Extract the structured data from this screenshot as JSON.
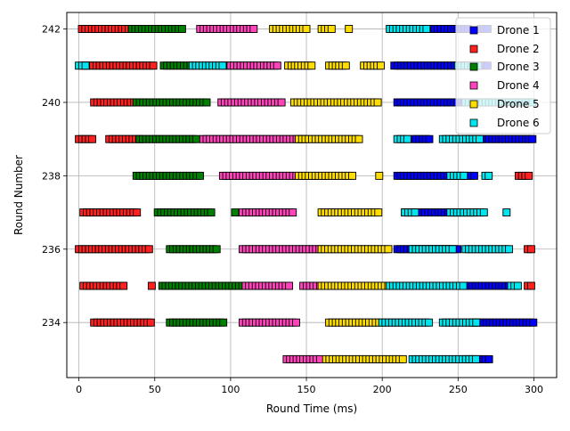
{
  "chart_data": {
    "type": "scatter",
    "title": "",
    "xlabel": "Round Time (ms)",
    "ylabel": "Round Number",
    "xlim": [
      -8,
      315
    ],
    "ylim": [
      232.5,
      242.45
    ],
    "xticks": [
      0,
      50,
      100,
      150,
      200,
      250,
      300
    ],
    "yticks": [
      234,
      236,
      238,
      240,
      242
    ],
    "grid": true,
    "legend_position": "top-right",
    "marker": "square",
    "series": [
      {
        "name": "Drone 1",
        "color": "#0000ff",
        "segments": [
          {
            "round": 242,
            "ranges": [
              [
                208,
                258
              ],
              [
                265,
                270
              ]
            ]
          },
          {
            "round": 241,
            "ranges": [
              [
                208,
                258
              ],
              [
                265,
                270
              ]
            ]
          },
          {
            "round": 240,
            "ranges": [
              [
                210,
                258
              ]
            ]
          },
          {
            "round": 239,
            "ranges": [
              [
                220,
                232
              ],
              [
                255,
                300
              ]
            ]
          },
          {
            "round": 238,
            "ranges": [
              [
                210,
                262
              ]
            ]
          },
          {
            "round": 237,
            "ranges": [
              [
                215,
                262
              ]
            ]
          },
          {
            "round": 236,
            "ranges": [
              [
                210,
                250
              ]
            ]
          },
          {
            "round": 235,
            "ranges": [
              [
                255,
                290
              ]
            ]
          },
          {
            "round": 234,
            "ranges": [
              [
                260,
                300
              ]
            ]
          },
          {
            "round": 233,
            "ranges": [
              [
                255,
                272
              ]
            ]
          }
        ]
      },
      {
        "name": "Drone 2",
        "color": "#ff2020",
        "segments": [
          {
            "round": 242,
            "ranges": [
              [
                2,
                38
              ]
            ]
          },
          {
            "round": 241,
            "ranges": [
              [
                5,
                50
              ]
            ]
          },
          {
            "round": 240,
            "ranges": [
              [
                10,
                38
              ]
            ]
          },
          {
            "round": 239,
            "ranges": [
              [
                0,
                10
              ],
              [
                20,
                40
              ]
            ]
          },
          {
            "round": 238,
            "ranges": [
              [
                290,
                298
              ]
            ]
          },
          {
            "round": 237,
            "ranges": [
              [
                3,
                40
              ]
            ]
          },
          {
            "round": 236,
            "ranges": [
              [
                0,
                48
              ],
              [
                296,
                300
              ]
            ]
          },
          {
            "round": 235,
            "ranges": [
              [
                3,
                30
              ],
              [
                48,
                50
              ],
              [
                296,
                300
              ]
            ]
          },
          {
            "round": 234,
            "ranges": [
              [
                10,
                48
              ]
            ]
          }
        ]
      },
      {
        "name": "Drone 3",
        "color": "#008000",
        "segments": [
          {
            "round": 242,
            "ranges": [
              [
                35,
                68
              ]
            ]
          },
          {
            "round": 241,
            "ranges": [
              [
                56,
                75
              ],
              [
                96,
                100
              ]
            ]
          },
          {
            "round": 240,
            "ranges": [
              [
                38,
                85
              ]
            ]
          },
          {
            "round": 239,
            "ranges": [
              [
                40,
                78
              ]
            ]
          },
          {
            "round": 238,
            "ranges": [
              [
                38,
                80
              ]
            ]
          },
          {
            "round": 237,
            "ranges": [
              [
                52,
                88
              ],
              [
                103,
                105
              ]
            ]
          },
          {
            "round": 236,
            "ranges": [
              [
                60,
                92
              ]
            ]
          },
          {
            "round": 235,
            "ranges": [
              [
                55,
                108
              ]
            ]
          },
          {
            "round": 234,
            "ranges": [
              [
                60,
                96
              ]
            ]
          }
        ]
      },
      {
        "name": "Drone 4",
        "color": "#ff44bb",
        "segments": [
          {
            "round": 242,
            "ranges": [
              [
                80,
                117
              ]
            ]
          },
          {
            "round": 241,
            "ranges": [
              [
                100,
                132
              ]
            ]
          },
          {
            "round": 240,
            "ranges": [
              [
                94,
                135
              ]
            ]
          },
          {
            "round": 239,
            "ranges": [
              [
                82,
                150
              ]
            ]
          },
          {
            "round": 238,
            "ranges": [
              [
                95,
                145
              ]
            ]
          },
          {
            "round": 237,
            "ranges": [
              [
                108,
                143
              ]
            ]
          },
          {
            "round": 236,
            "ranges": [
              [
                108,
                160
              ]
            ]
          },
          {
            "round": 235,
            "ranges": [
              [
                110,
                140
              ],
              [
                148,
                160
              ]
            ]
          },
          {
            "round": 234,
            "ranges": [
              [
                108,
                145
              ]
            ]
          },
          {
            "round": 233,
            "ranges": [
              [
                137,
                160
              ]
            ]
          }
        ]
      },
      {
        "name": "Drone 5",
        "color": "#ffdd00",
        "segments": [
          {
            "round": 242,
            "ranges": [
              [
                128,
                150
              ],
              [
                160,
                168
              ],
              [
                178,
                180
              ]
            ]
          },
          {
            "round": 241,
            "ranges": [
              [
                138,
                155
              ],
              [
                165,
                178
              ],
              [
                188,
                200
              ]
            ]
          },
          {
            "round": 240,
            "ranges": [
              [
                142,
                198
              ]
            ]
          },
          {
            "round": 239,
            "ranges": [
              [
                145,
                185
              ]
            ]
          },
          {
            "round": 238,
            "ranges": [
              [
                145,
                182
              ],
              [
                198,
                200
              ]
            ]
          },
          {
            "round": 237,
            "ranges": [
              [
                160,
                198
              ]
            ]
          },
          {
            "round": 236,
            "ranges": [
              [
                160,
                205
              ]
            ]
          },
          {
            "round": 235,
            "ranges": [
              [
                160,
                210
              ]
            ]
          },
          {
            "round": 234,
            "ranges": [
              [
                165,
                200
              ]
            ]
          },
          {
            "round": 233,
            "ranges": [
              [
                163,
                215
              ]
            ]
          }
        ]
      },
      {
        "name": "Drone 6",
        "color": "#00e5ee",
        "segments": [
          {
            "round": 242,
            "ranges": [
              [
                205,
                230
              ]
            ]
          },
          {
            "round": 241,
            "ranges": [
              [
                0,
                5
              ],
              [
                75,
                95
              ],
              [
                250,
                265
              ]
            ]
          },
          {
            "round": 240,
            "ranges": [
              [
                255,
                300
              ]
            ]
          },
          {
            "round": 239,
            "ranges": [
              [
                210,
                218
              ],
              [
                240,
                265
              ]
            ]
          },
          {
            "round": 238,
            "ranges": [
              [
                245,
                255
              ],
              [
                268,
                272
              ]
            ]
          },
          {
            "round": 237,
            "ranges": [
              [
                215,
                222
              ],
              [
                245,
                268
              ],
              [
                282,
                284
              ]
            ]
          },
          {
            "round": 236,
            "ranges": [
              [
                220,
                248
              ],
              [
                255,
                285
              ]
            ]
          },
          {
            "round": 235,
            "ranges": [
              [
                205,
                255
              ],
              [
                285,
                290
              ]
            ]
          },
          {
            "round": 234,
            "ranges": [
              [
                200,
                232
              ],
              [
                240,
                262
              ]
            ]
          },
          {
            "round": 233,
            "ranges": [
              [
                220,
                262
              ]
            ]
          }
        ]
      }
    ]
  }
}
